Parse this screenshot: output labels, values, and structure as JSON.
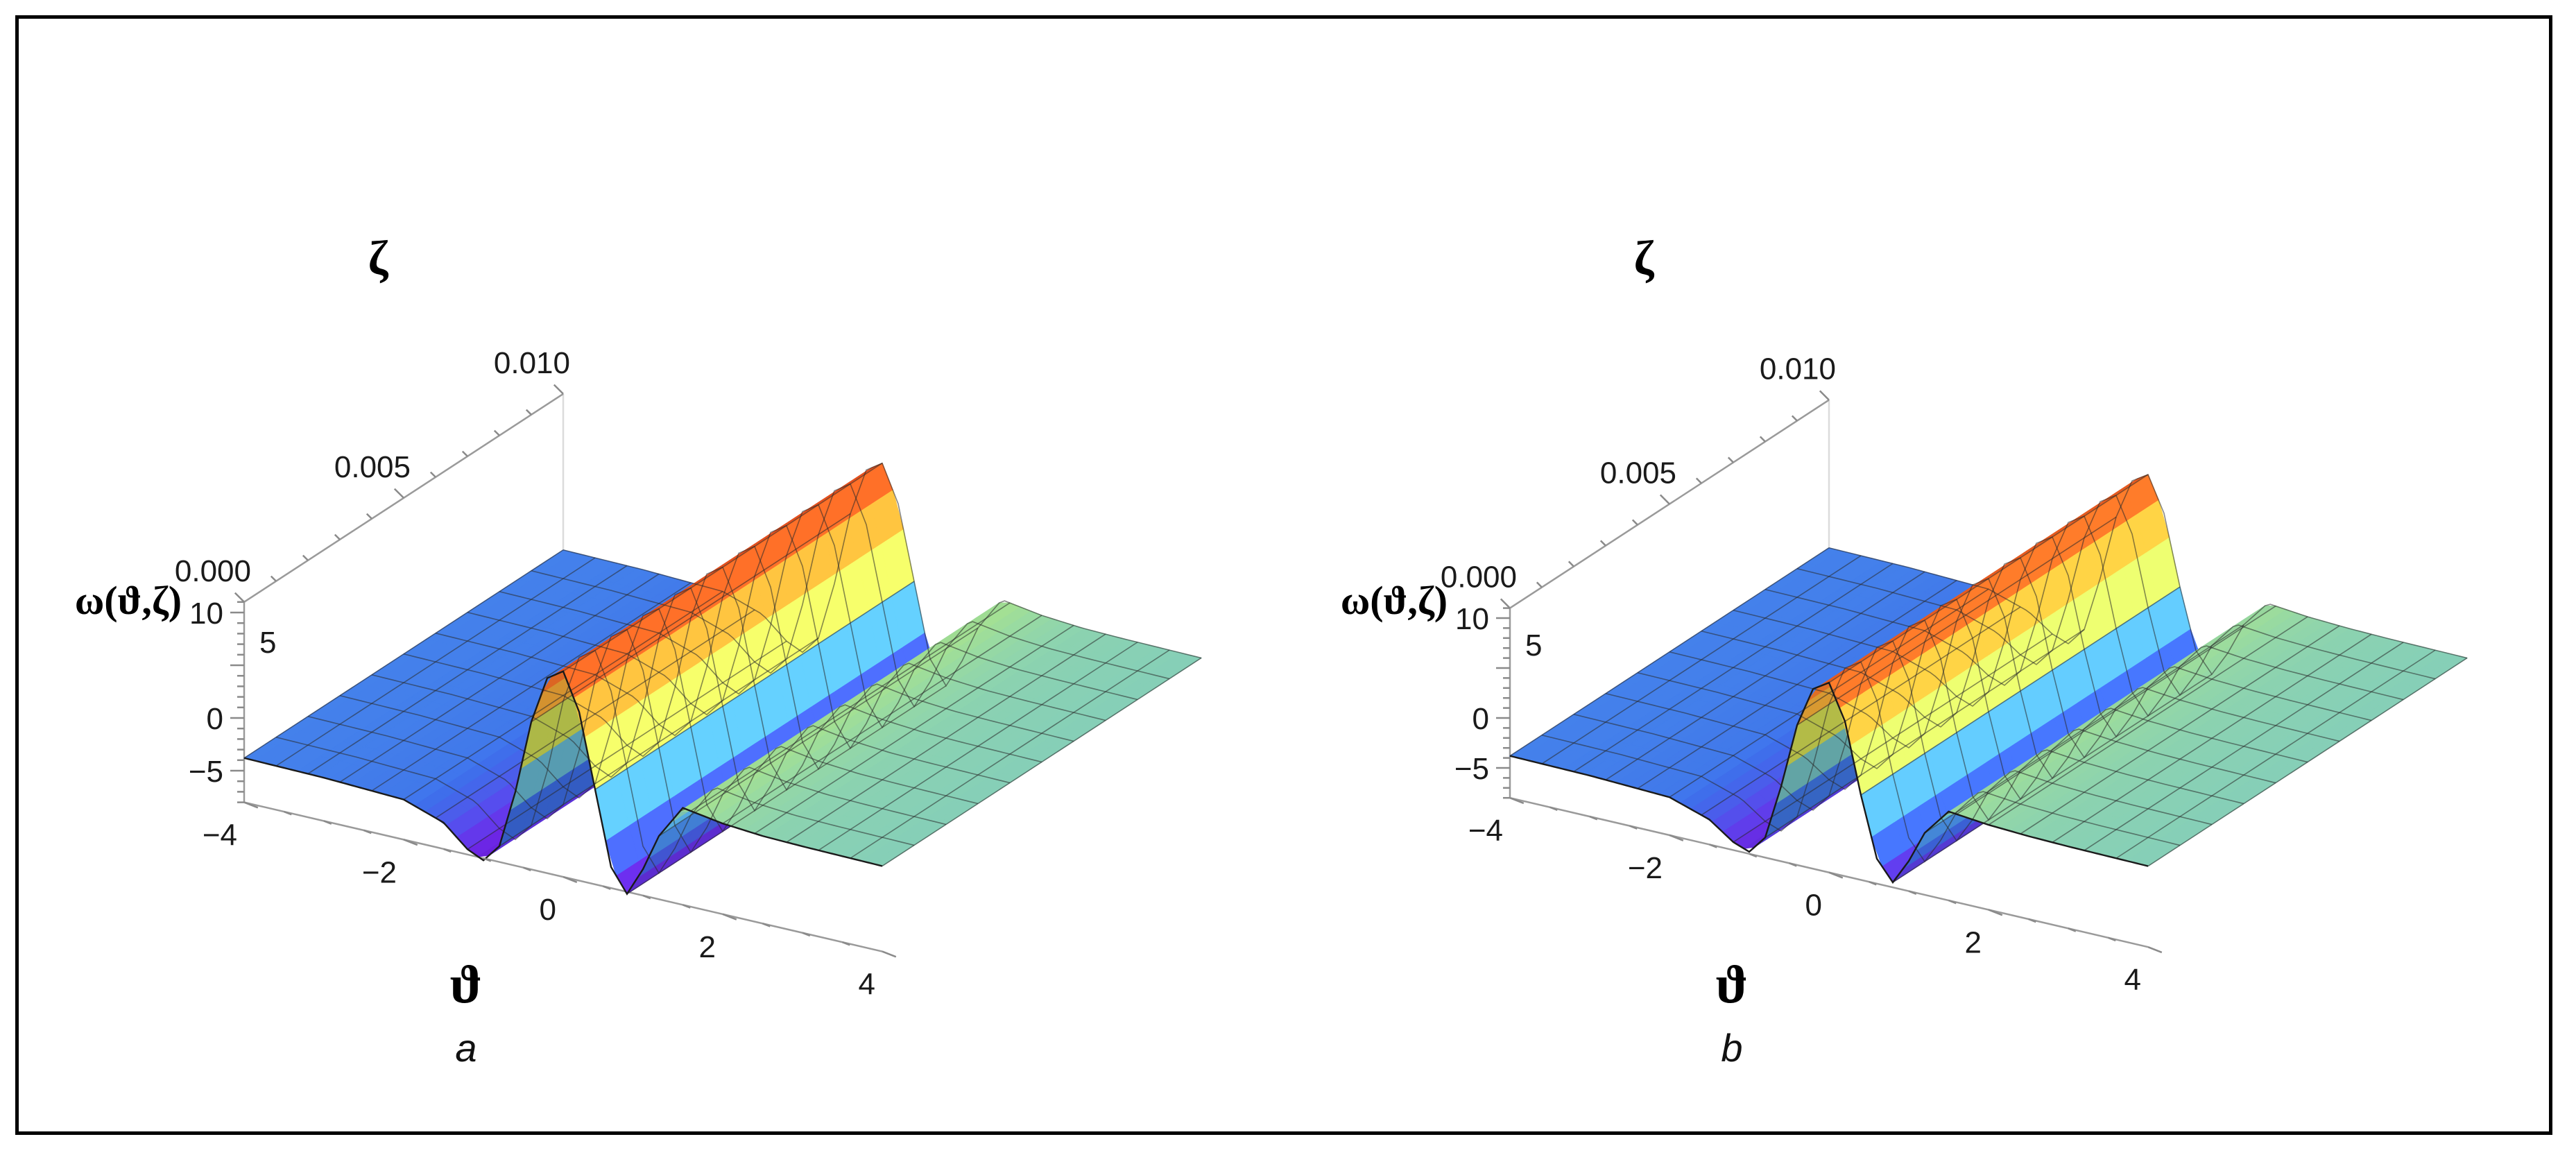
{
  "chart_data": [
    {
      "type": "surface3d",
      "panel_label": "a",
      "xlabel": "ϑ",
      "ylabel": "ζ",
      "zlabel": "ω(ϑ,ζ)",
      "x_ticks": [
        "−4",
        "−2",
        "0",
        "2",
        "4"
      ],
      "y_ticks": [
        "0.000",
        "0.005",
        "0.010"
      ],
      "z_ticks": [
        "10",
        "5",
        "0",
        "−5"
      ],
      "xlim": [
        -4,
        4
      ],
      "ylim": [
        0,
        0.01
      ],
      "zlim": [
        -8,
        12
      ],
      "profile_theta": [
        -4,
        -3,
        -2,
        -1.5,
        -1.2,
        -1.0,
        -0.8,
        -0.6,
        -0.4,
        -0.2,
        0,
        0.2,
        0.4,
        0.6,
        0.8,
        1.0,
        1.2,
        1.5,
        2,
        2.5,
        3,
        4
      ],
      "profile_omega": [
        -3.8,
        -3.9,
        -4.2,
        -5.5,
        -7.5,
        -8.2,
        -6.5,
        -1.0,
        6.0,
        10.5,
        11.5,
        8.0,
        1.0,
        -6.0,
        -8.2,
        -5.5,
        -2.0,
        1.2,
        0.6,
        0.3,
        0.2,
        0.1
      ],
      "colors": [
        "#6e1fe0",
        "#3d6ee8",
        "#58b6f2",
        "#c2f06a",
        "#f5e34a",
        "#f58a2c",
        "#e8401c"
      ]
    },
    {
      "type": "surface3d",
      "panel_label": "b",
      "xlabel": "ϑ",
      "ylabel": "ζ",
      "zlabel": "ω(ϑ,ζ)",
      "x_ticks": [
        "−4",
        "−2",
        "0",
        "2",
        "4"
      ],
      "y_ticks": [
        "0.000",
        "0.005",
        "0.010"
      ],
      "z_ticks": [
        "10",
        "5",
        "0",
        "−5"
      ],
      "xlim": [
        -4,
        4
      ],
      "ylim": [
        0,
        0.01
      ],
      "zlim": [
        -8,
        12
      ],
      "profile_theta": [
        -4,
        -3,
        -2,
        -1.5,
        -1.2,
        -1.0,
        -0.8,
        -0.6,
        -0.4,
        -0.2,
        0,
        0.2,
        0.4,
        0.6,
        0.8,
        1.0,
        1.2,
        1.5,
        2,
        2.5,
        3,
        4
      ],
      "profile_omega": [
        -3.8,
        -3.9,
        -4.2,
        -5.5,
        -7.2,
        -7.8,
        -6.0,
        -0.5,
        6.0,
        10.0,
        11.0,
        7.5,
        0.5,
        -5.5,
        -7.5,
        -5.0,
        -1.8,
        0.9,
        0.5,
        0.3,
        0.2,
        0.1
      ],
      "colors": [
        "#6e1fe0",
        "#3d6ee8",
        "#58b6f2",
        "#c2f06a",
        "#f5e34a",
        "#f58a2c",
        "#e8401c"
      ]
    }
  ]
}
